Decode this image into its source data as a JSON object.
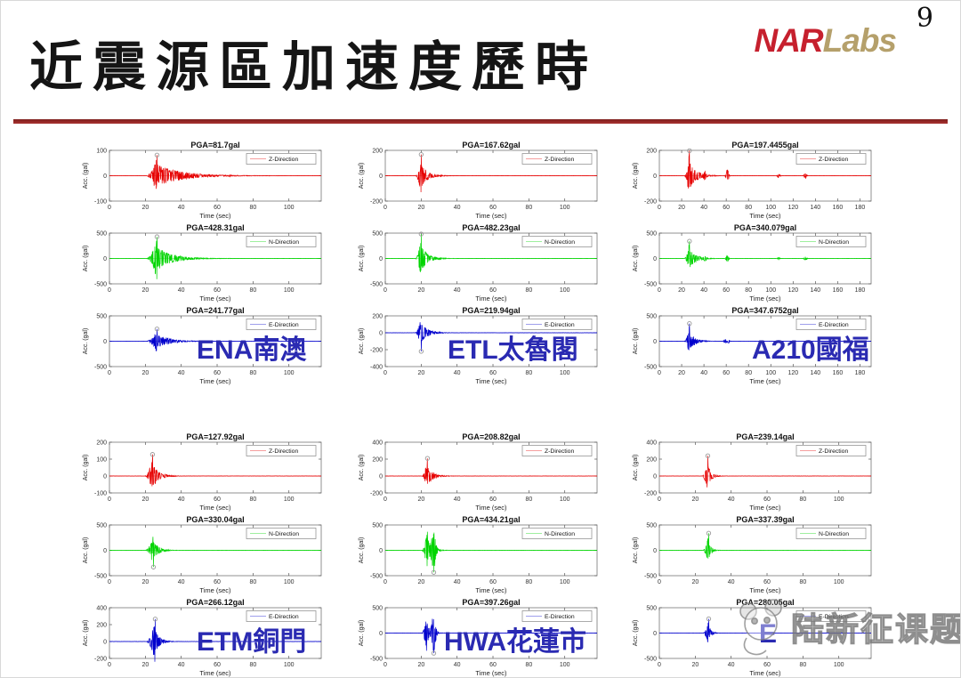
{
  "page_number": "9",
  "header": {
    "title": "近震源區加速度歷時",
    "logo_nar": "NAR",
    "logo_labs": "Labs"
  },
  "watermark": {
    "text": "陆新征课题组",
    "icon": "panda-logo"
  },
  "colors": {
    "divider": "#9b2b27",
    "logo_nar": "#c6202e",
    "logo_labs": "#b5a06b",
    "station_label": "#2a2ab2",
    "z_trace": "#e60000",
    "n_trace": "#00d400",
    "e_trace": "#0000cd",
    "marker": "#999999",
    "axes_border": "#777777"
  },
  "chart_data": {
    "type": "line",
    "xlabel": "Time (sec)",
    "ylabel": "Acc. (gal)",
    "grid": false,
    "legend_position": "upper-right",
    "stations": [
      {
        "label_latin": "ENA",
        "label_cjk": "南澳",
        "xlim": [
          0,
          118
        ],
        "xticks": [
          0,
          20,
          40,
          60,
          80,
          100
        ],
        "plots": [
          {
            "direction": "Z-Direction",
            "title": "PGA=81.7gal",
            "pga": 81.7,
            "color": "#e60000",
            "ylim": [
              -100,
              100
            ],
            "yticks": [
              100,
              0,
              -100
            ],
            "burst": {
              "start": 20,
              "peak": 26.5,
              "tau": 13
            },
            "marker": {
              "t": 26.5,
              "sign": 1
            },
            "aftershocks": []
          },
          {
            "direction": "N-Direction",
            "title": "PGA=428.31gal",
            "pga": 428.31,
            "color": "#00d400",
            "ylim": [
              -500,
              500
            ],
            "yticks": [
              500,
              0,
              -500
            ],
            "burst": {
              "start": 20,
              "peak": 26.5,
              "tau": 8
            },
            "marker": {
              "t": 26.5,
              "sign": 1
            },
            "aftershocks": []
          },
          {
            "direction": "E-Direction",
            "title": "PGA=241.77gal",
            "pga": 241.77,
            "color": "#0000cd",
            "ylim": [
              -500,
              500
            ],
            "yticks": [
              500,
              0,
              -500
            ],
            "burst": {
              "start": 20,
              "peak": 26.5,
              "tau": 7
            },
            "marker": {
              "t": 26.5,
              "sign": 1
            },
            "aftershocks": []
          }
        ]
      },
      {
        "label_latin": "ETL",
        "label_cjk": "太魯閣",
        "xlim": [
          0,
          118
        ],
        "xticks": [
          0,
          20,
          40,
          60,
          80,
          100
        ],
        "plots": [
          {
            "direction": "Z-Direction",
            "title": "PGA=167.62gal",
            "pga": 167.62,
            "color": "#e60000",
            "ylim": [
              -200,
              200
            ],
            "yticks": [
              200,
              0,
              -200
            ],
            "burst": {
              "start": 16.5,
              "peak": 20,
              "tau": 3.5
            },
            "marker": {
              "t": 20,
              "sign": 1
            },
            "aftershocks": []
          },
          {
            "direction": "N-Direction",
            "title": "PGA=482.23gal",
            "pga": 482.23,
            "color": "#00d400",
            "ylim": [
              -500,
              500
            ],
            "yticks": [
              500,
              0,
              -500
            ],
            "burst": {
              "start": 16.5,
              "peak": 20,
              "tau": 3.5
            },
            "marker": {
              "t": 20,
              "sign": 1
            },
            "aftershocks": []
          },
          {
            "direction": "E-Direction",
            "title": "PGA=219.94gal",
            "pga": 219.94,
            "color": "#0000cd",
            "ylim": [
              -400,
              200
            ],
            "yticks": [
              200,
              0,
              -200,
              -400
            ],
            "burst": {
              "start": 16.5,
              "peak": 20,
              "tau": 3.5
            },
            "marker": {
              "t": 20,
              "sign": -1
            },
            "aftershocks": []
          }
        ]
      },
      {
        "label_latin": "A210",
        "label_cjk": "國福",
        "xlim": [
          0,
          190
        ],
        "xticks": [
          0,
          20,
          40,
          60,
          80,
          100,
          120,
          140,
          160,
          180
        ],
        "plots": [
          {
            "direction": "Z-Direction",
            "title": "PGA=197.4455gal",
            "pga": 197.4455,
            "color": "#e60000",
            "ylim": [
              -200,
              200
            ],
            "yticks": [
              200,
              0,
              -200
            ],
            "burst": {
              "start": 22,
              "peak": 27,
              "tau": 6
            },
            "marker": {
              "t": 27,
              "sign": 1
            },
            "aftershocks": [
              {
                "t": 41,
                "rel": 0.16
              },
              {
                "t": 61,
                "rel": 0.28
              },
              {
                "t": 107,
                "rel": 0.08
              },
              {
                "t": 131,
                "rel": 0.12
              }
            ]
          },
          {
            "direction": "N-Direction",
            "title": "PGA=340.079gal",
            "pga": 340.079,
            "color": "#00d400",
            "ylim": [
              -500,
              500
            ],
            "yticks": [
              500,
              0,
              -500
            ],
            "burst": {
              "start": 22,
              "peak": 27,
              "tau": 6
            },
            "marker": {
              "t": 27,
              "sign": 1
            },
            "aftershocks": [
              {
                "t": 41,
                "rel": 0.14
              },
              {
                "t": 61,
                "rel": 0.2
              },
              {
                "t": 107,
                "rel": 0.06
              },
              {
                "t": 131,
                "rel": 0.1
              }
            ]
          },
          {
            "direction": "E-Direction",
            "title": "PGA=347.6752gal",
            "pga": 347.6752,
            "color": "#0000cd",
            "ylim": [
              -500,
              500
            ],
            "yticks": [
              500,
              0,
              -500
            ],
            "burst": {
              "start": 22,
              "peak": 27,
              "tau": 5
            },
            "marker": {
              "t": 27,
              "sign": 1
            },
            "aftershocks": [
              {
                "t": 59,
                "rel": 0.12
              },
              {
                "t": 62,
                "rel": 0.1
              }
            ]
          }
        ]
      },
      {
        "label_latin": "ETM",
        "label_cjk": "銅門",
        "xlim": [
          0,
          118
        ],
        "xticks": [
          0,
          20,
          40,
          60,
          80,
          100
        ],
        "plots": [
          {
            "direction": "Z-Direction",
            "title": "PGA=127.92gal",
            "pga": 127.92,
            "color": "#e60000",
            "ylim": [
              -100,
              200
            ],
            "yticks": [
              200,
              100,
              0,
              -100
            ],
            "burst": {
              "start": 19.5,
              "peak": 24,
              "tau": 3.5
            },
            "marker": {
              "t": 24,
              "sign": 1
            },
            "aftershocks": []
          },
          {
            "direction": "N-Direction",
            "title": "PGA=330.04gal",
            "pga": 330.04,
            "color": "#00d400",
            "ylim": [
              -500,
              500
            ],
            "yticks": [
              500,
              0,
              -500
            ],
            "burst": {
              "start": 19.5,
              "peak": 24.5,
              "tau": 3
            },
            "marker": {
              "t": 24.5,
              "sign": -1
            },
            "aftershocks": []
          },
          {
            "direction": "E-Direction",
            "title": "PGA=266.12gal",
            "pga": 266.12,
            "color": "#0000cd",
            "ylim": [
              -200,
              400
            ],
            "yticks": [
              400,
              200,
              0,
              -200
            ],
            "burst": {
              "start": 20,
              "peak": 25.5,
              "tau": 2.5
            },
            "marker": {
              "t": 25.5,
              "sign": 1
            },
            "aftershocks": []
          }
        ]
      },
      {
        "label_latin": "HWA",
        "label_cjk": "花蓮市",
        "xlim": [
          0,
          118
        ],
        "xticks": [
          0,
          20,
          40,
          60,
          80,
          100
        ],
        "plots": [
          {
            "direction": "Z-Direction",
            "title": "PGA=208.82gal",
            "pga": 208.82,
            "color": "#e60000",
            "ylim": [
              -200,
              400
            ],
            "yticks": [
              400,
              200,
              0,
              -200
            ],
            "burst": {
              "start": 20,
              "peak": 23.5,
              "tau": 3
            },
            "marker": {
              "t": 23.5,
              "sign": 1
            },
            "aftershocks": []
          },
          {
            "direction": "N-Direction",
            "title": "PGA=434.21gal",
            "pga": 434.21,
            "color": "#00d400",
            "ylim": [
              -500,
              500
            ],
            "yticks": [
              500,
              0,
              -500
            ],
            "burst": {
              "start": 20,
              "peak": 23.5,
              "tau": 2.5
            },
            "marker": {
              "t": 27,
              "sign": -1
            },
            "aftershocks": [
              {
                "t": 27,
                "rel": 0.8
              }
            ]
          },
          {
            "direction": "E-Direction",
            "title": "PGA=397.26gal",
            "pga": 397.26,
            "color": "#0000cd",
            "ylim": [
              -500,
              500
            ],
            "yticks": [
              500,
              0,
              -500
            ],
            "burst": {
              "start": 20,
              "peak": 23,
              "tau": 2
            },
            "marker": {
              "t": 27,
              "sign": -1
            },
            "aftershocks": [
              {
                "t": 27,
                "rel": 0.85
              }
            ]
          }
        ]
      },
      {
        "label_latin": "E",
        "label_cjk": "",
        "xlim": [
          0,
          118
        ],
        "xticks": [
          0,
          20,
          40,
          60,
          80,
          100
        ],
        "plots": [
          {
            "direction": "Z-Direction",
            "title": "PGA=239.14gal",
            "pga": 239.14,
            "color": "#e60000",
            "ylim": [
              -200,
              400
            ],
            "yticks": [
              400,
              200,
              0,
              -200
            ],
            "burst": {
              "start": 23.5,
              "peak": 27,
              "tau": 2
            },
            "marker": {
              "t": 27,
              "sign": 1
            },
            "aftershocks": []
          },
          {
            "direction": "N-Direction",
            "title": "PGA=337.39gal",
            "pga": 337.39,
            "color": "#00d400",
            "ylim": [
              -500,
              500
            ],
            "yticks": [
              500,
              0,
              -500
            ],
            "burst": {
              "start": 24,
              "peak": 27.5,
              "tau": 1.5
            },
            "marker": {
              "t": 27.5,
              "sign": 1
            },
            "aftershocks": []
          },
          {
            "direction": "E-Direction",
            "title": "PGA=280.05gal",
            "pga": 280.05,
            "color": "#0000cd",
            "ylim": [
              -500,
              500
            ],
            "yticks": [
              500,
              0,
              -500
            ],
            "burst": {
              "start": 24,
              "peak": 27.5,
              "tau": 1.5
            },
            "marker": {
              "t": 27.5,
              "sign": 1
            },
            "aftershocks": []
          }
        ]
      }
    ]
  }
}
